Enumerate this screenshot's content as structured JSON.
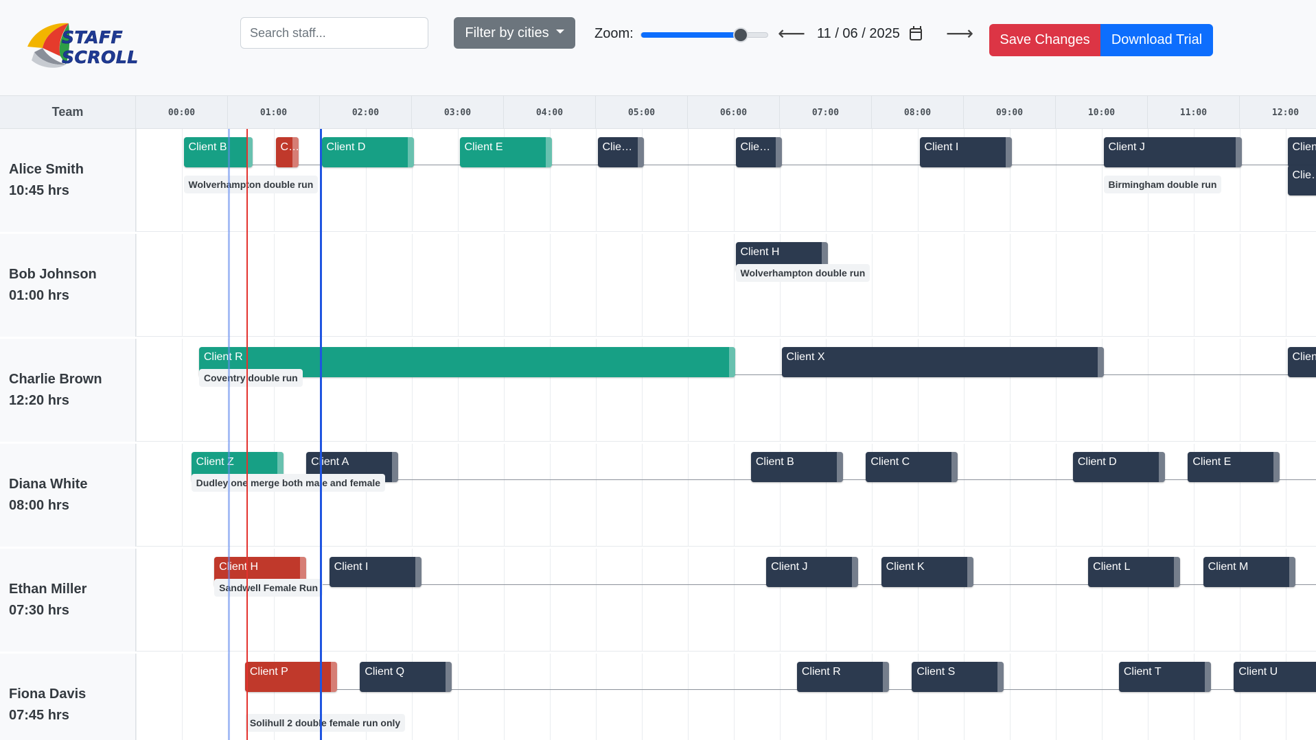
{
  "app": {
    "title": "STAFF SCROLL"
  },
  "toolbar": {
    "search_placeholder": "Search staff...",
    "filter_label": "Filter by cities",
    "zoom_label": "Zoom:",
    "zoom_level": 0.78,
    "prev_icon": "arrow-left-icon",
    "next_icon": "arrow-right-icon",
    "prev_arrow": "⟵",
    "next_arrow": "⟶",
    "date": "11 / 06 / 2025",
    "save_label": "Save Changes",
    "trial_label": "Download Trial"
  },
  "timeline": {
    "team_label": "Team",
    "hours": [
      "00:00",
      "01:00",
      "02:00",
      "03:00",
      "04:00",
      "05:00",
      "06:00",
      "07:00",
      "08:00",
      "09:00",
      "10:00",
      "11:00",
      "12:00"
    ]
  },
  "staff": [
    {
      "name": "Alice Smith",
      "hours": "10:45 hrs",
      "shifts": [
        {
          "label": "Client B",
          "color": "teal",
          "start": "00:15",
          "end": "01:00"
        },
        {
          "label": "Client C",
          "color": "red",
          "start": "01:15",
          "end": "01:30"
        },
        {
          "label": "Client D",
          "color": "teal",
          "start": "01:45",
          "end": "02:45"
        },
        {
          "label": "Client E",
          "color": "teal",
          "start": "03:15",
          "end": "04:15"
        },
        {
          "label": "Client F",
          "color": "dark",
          "start": "04:45",
          "end": "05:15"
        },
        {
          "label": "Client G",
          "color": "dark",
          "start": "06:15",
          "end": "06:45"
        },
        {
          "label": "Client I",
          "color": "dark",
          "start": "08:15",
          "end": "09:15"
        },
        {
          "label": "Client J",
          "color": "dark",
          "start": "10:15",
          "end": "11:45"
        },
        {
          "label": "Client K",
          "color": "dark",
          "start": "12:15",
          "end": "13:00"
        },
        {
          "label": "Client L",
          "color": "dark",
          "start": "12:15",
          "end": "12:45",
          "stack": 1
        }
      ],
      "tags": [
        {
          "text": "Wolverhampton double run",
          "at": "00:15"
        },
        {
          "text": "Birmingham double run",
          "at": "10:15"
        }
      ]
    },
    {
      "name": "Bob Johnson",
      "hours": "01:00 hrs",
      "shifts": [
        {
          "label": "Client H",
          "color": "dark",
          "start": "06:15",
          "end": "07:15"
        }
      ],
      "tags": [
        {
          "text": "Wolverhampton double run",
          "at": "06:15"
        }
      ]
    },
    {
      "name": "Charlie Brown",
      "hours": "12:20 hrs",
      "shifts": [
        {
          "label": "Client R",
          "color": "teal",
          "start": "00:25",
          "end": "06:15"
        },
        {
          "label": "Client X",
          "color": "dark",
          "start": "06:45",
          "end": "10:15"
        },
        {
          "label": "Client Y",
          "color": "dark",
          "start": "12:15",
          "end": "13:00"
        }
      ],
      "tags": [
        {
          "text": "Coventry double run",
          "at": "00:25"
        }
      ]
    },
    {
      "name": "Diana White",
      "hours": "08:00 hrs",
      "shifts": [
        {
          "label": "Client Z",
          "color": "teal",
          "start": "00:20",
          "end": "01:20"
        },
        {
          "label": "Client A",
          "color": "dark",
          "start": "01:35",
          "end": "02:35"
        },
        {
          "label": "Client B",
          "color": "dark",
          "start": "06:25",
          "end": "07:25"
        },
        {
          "label": "Client C",
          "color": "dark",
          "start": "07:40",
          "end": "08:40"
        },
        {
          "label": "Client D",
          "color": "dark",
          "start": "09:55",
          "end": "10:55"
        },
        {
          "label": "Client E",
          "color": "dark",
          "start": "11:10",
          "end": "12:10"
        }
      ],
      "tags": [
        {
          "text": "Dudley one merge both male and female",
          "at": "00:20"
        }
      ]
    },
    {
      "name": "Ethan Miller",
      "hours": "07:30 hrs",
      "shifts": [
        {
          "label": "Client H",
          "color": "red",
          "start": "00:35",
          "end": "01:35"
        },
        {
          "label": "Client I",
          "color": "dark",
          "start": "01:50",
          "end": "02:50"
        },
        {
          "label": "Client J",
          "color": "dark",
          "start": "06:35",
          "end": "07:35"
        },
        {
          "label": "Client K",
          "color": "dark",
          "start": "07:50",
          "end": "08:50"
        },
        {
          "label": "Client L",
          "color": "dark",
          "start": "10:05",
          "end": "11:05"
        },
        {
          "label": "Client M",
          "color": "dark",
          "start": "11:20",
          "end": "12:20"
        }
      ],
      "tags": [
        {
          "text": "Sandwell Female Run",
          "at": "00:35"
        }
      ]
    },
    {
      "name": "Fiona Davis",
      "hours": "07:45 hrs",
      "shifts": [
        {
          "label": "Client P",
          "color": "red",
          "start": "00:55",
          "end": "01:55"
        },
        {
          "label": "Client Q",
          "color": "dark",
          "start": "02:10",
          "end": "03:10"
        },
        {
          "label": "Client R",
          "color": "dark",
          "start": "06:55",
          "end": "07:55"
        },
        {
          "label": "Client S",
          "color": "dark",
          "start": "08:10",
          "end": "09:10"
        },
        {
          "label": "Client T",
          "color": "dark",
          "start": "10:25",
          "end": "11:25"
        },
        {
          "label": "Client U",
          "color": "dark",
          "start": "11:40",
          "end": "12:40"
        }
      ],
      "tags": [
        {
          "text": "Solihull 2 double female run only",
          "at": "00:55"
        }
      ]
    }
  ],
  "markers": [
    {
      "kind": "light",
      "time": "01:00"
    },
    {
      "kind": "red",
      "time": "01:12"
    },
    {
      "kind": "blue",
      "time": "02:00"
    }
  ],
  "colors": {
    "teal": "#17a085",
    "dark": "#2c3a4f",
    "red": "#c0392b",
    "save": "#dc3545",
    "trial": "#0d6efd"
  }
}
